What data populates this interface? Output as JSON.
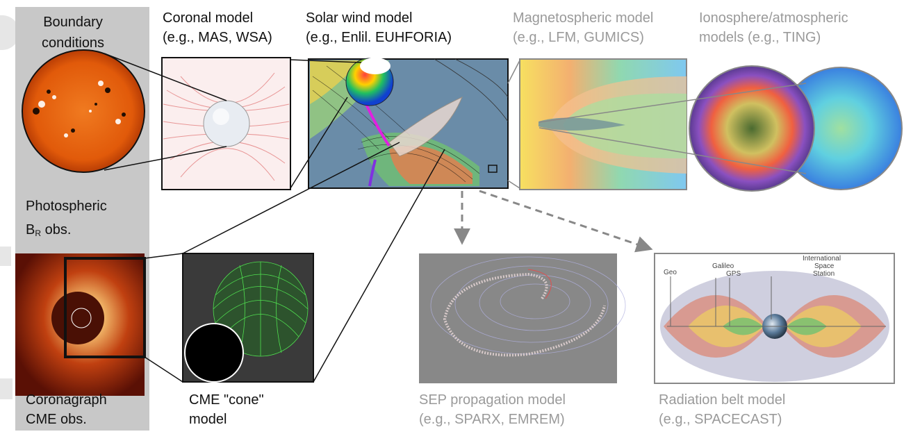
{
  "sidebar": {
    "boundary_line1": "Boundary",
    "boundary_line2": "conditions",
    "photo_line1": "Photospheric",
    "photo_b": "B",
    "photo_sub": "R",
    "photo_rest": " obs.",
    "coronagraph_line1": "Coronagraph",
    "coronagraph_line2": "CME obs."
  },
  "models": {
    "coronal_line1": "Coronal model",
    "coronal_line2": "(e.g., MAS, WSA)",
    "solarwind_line1": "Solar wind model",
    "solarwind_line2": "(e.g., Enlil. EUHFORIA)",
    "magneto_line1": "Magnetospheric model",
    "magneto_line2": "(e.g., LFM, GUMICS)",
    "iono_line1": "Ionosphere/atmospheric",
    "iono_line2": "models (e.g., TING)",
    "cme_line1": "CME \"cone\"",
    "cme_line2": "model",
    "sep_line1": "SEP propagation model",
    "sep_line2": "(e.g., SPARX, EMREM)",
    "rad_line1": "Radiation belt model",
    "rad_line2": "(e.g., SPACECAST)"
  },
  "radiation_labels": {
    "geo": "Geo",
    "galileo": "Galileo",
    "gps": "GPS",
    "iss1": "International",
    "iss2": "Space",
    "iss3": "Station"
  },
  "colors": {
    "sidebar": "#c8c8c8",
    "gray_text": "#9a9a9a",
    "sun_orange": "#e8620f"
  }
}
